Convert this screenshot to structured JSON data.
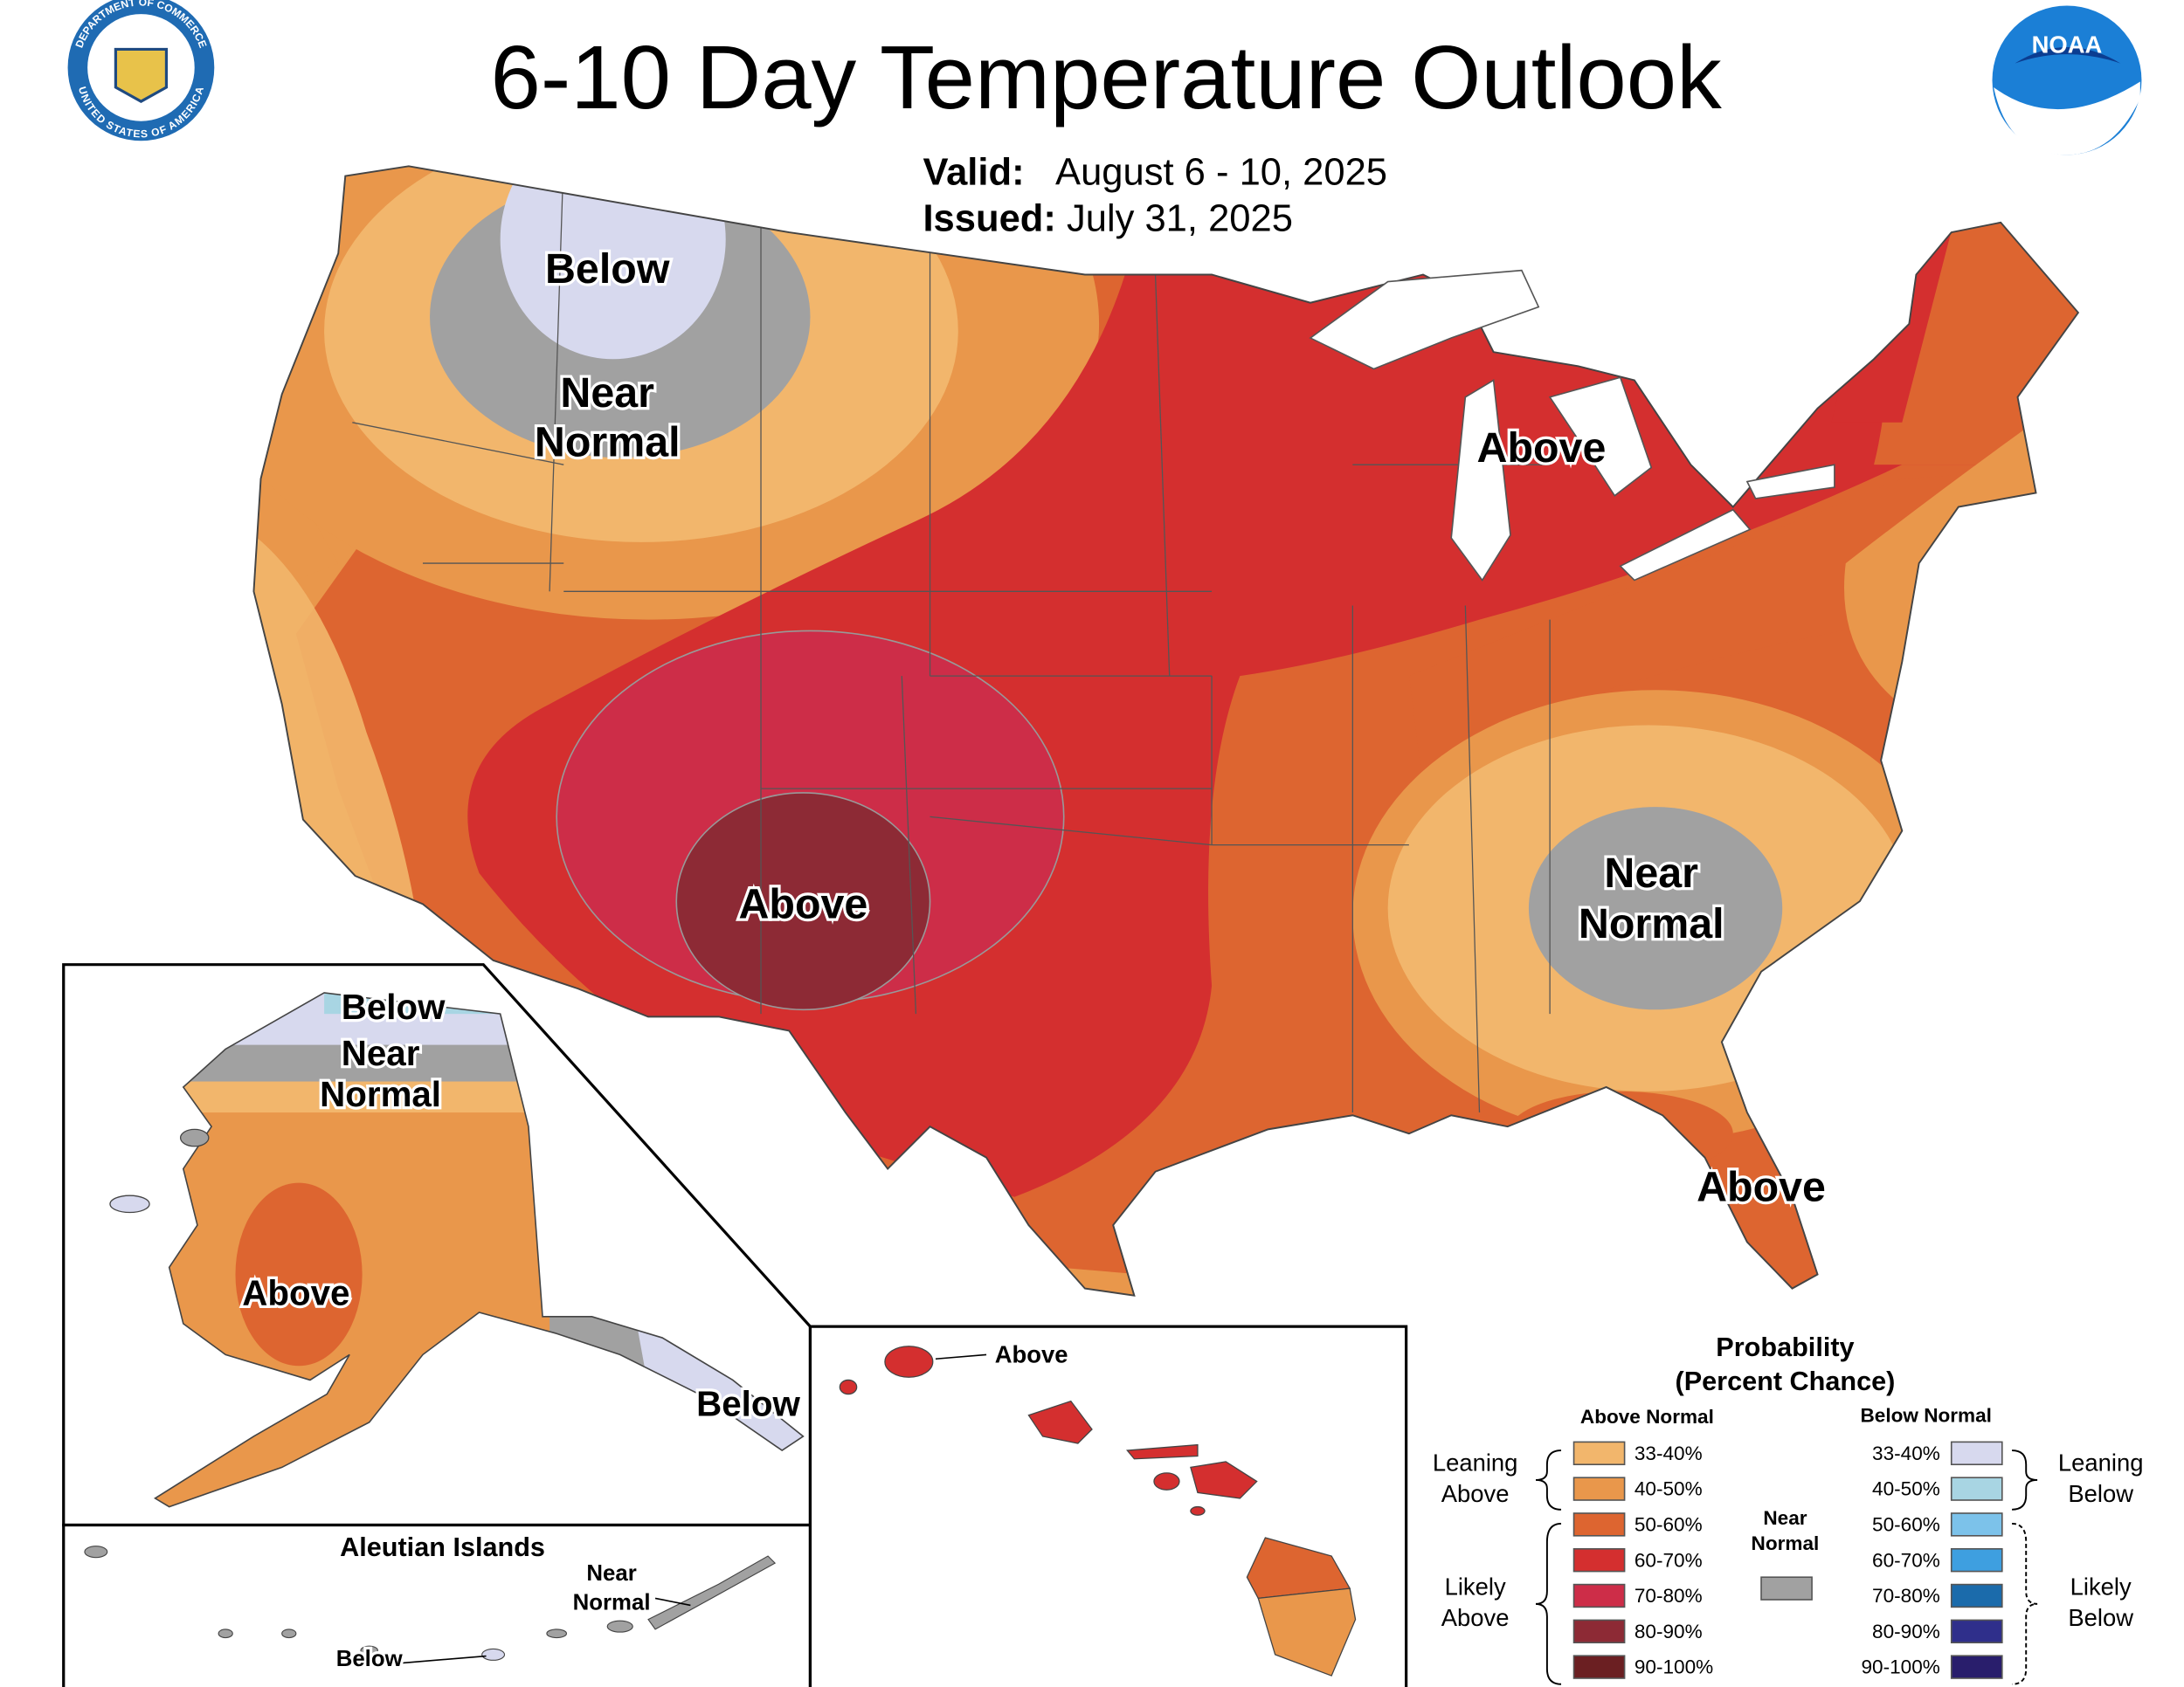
{
  "header": {
    "title": "6-10 Day Temperature Outlook",
    "valid_label": "Valid:",
    "valid": "August 6 - 10, 2025",
    "issued_label": "Issued:",
    "issued": "July 31, 2025"
  },
  "logos": {
    "seal_top": "DEPARTMENT OF COMMERCE",
    "seal_bottom": "UNITED STATES OF AMERICA",
    "noaa": "NOAA"
  },
  "conus_labels": {
    "below_northwest": "Below",
    "near_normal_northwest": [
      "Near",
      "Normal"
    ],
    "above_great_lakes": "Above",
    "above_southwest": "Above",
    "near_normal_southeast": [
      "Near",
      "Normal"
    ],
    "above_florida": "Above"
  },
  "alaska_labels": {
    "below_north": "Below",
    "near_normal_north": [
      "Near",
      "Normal"
    ],
    "above_west": "Above",
    "below_panhandle": "Below"
  },
  "aleutian": {
    "title": "Aleutian Islands",
    "near_normal": [
      "Near",
      "Normal"
    ],
    "below": "Below"
  },
  "hawaii": {
    "above": "Above"
  },
  "legend": {
    "title": [
      "Probability",
      "(Percent Chance)"
    ],
    "above_header": "Above Normal",
    "below_header": "Below Normal",
    "above": [
      {
        "range": "33-40%",
        "color": "#f2b66c"
      },
      {
        "range": "40-50%",
        "color": "#e9974b"
      },
      {
        "range": "50-60%",
        "color": "#dd6530"
      },
      {
        "range": "60-70%",
        "color": "#d42f2f"
      },
      {
        "range": "70-80%",
        "color": "#cd2d48"
      },
      {
        "range": "80-90%",
        "color": "#8d2a35"
      },
      {
        "range": "90-100%",
        "color": "#6b1f22"
      }
    ],
    "below": [
      {
        "range": "33-40%",
        "color": "#d7d9ee"
      },
      {
        "range": "40-50%",
        "color": "#a8d5e3"
      },
      {
        "range": "50-60%",
        "color": "#7cc2ea"
      },
      {
        "range": "60-70%",
        "color": "#3e9fe0"
      },
      {
        "range": "70-80%",
        "color": "#1b6bab"
      },
      {
        "range": "80-90%",
        "color": "#2f2f8b"
      },
      {
        "range": "90-100%",
        "color": "#291e6c"
      }
    ],
    "near_normal": {
      "text": [
        "Near",
        "Normal"
      ],
      "color": "#a1a1a1"
    },
    "leaning_above": [
      "Leaning",
      "Above"
    ],
    "likely_above": [
      "Likely",
      "Above"
    ],
    "leaning_below": [
      "Leaning",
      "Below"
    ],
    "likely_below": [
      "Likely",
      "Below"
    ]
  }
}
